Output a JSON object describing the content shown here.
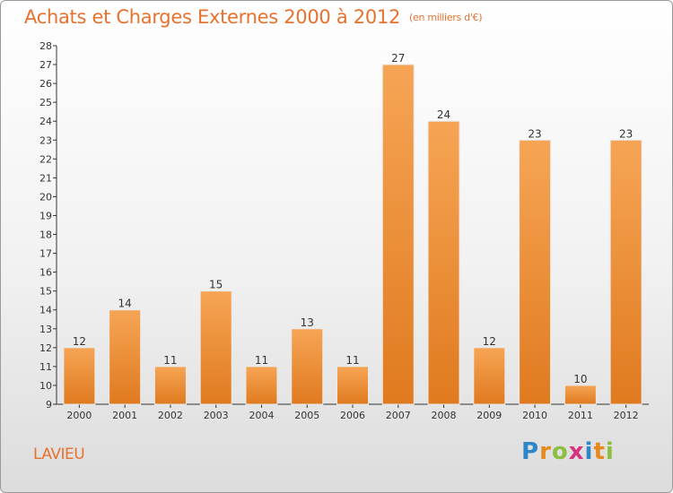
{
  "header": {
    "title": "Achats et Charges Externes 2000 à 2012",
    "subtitle": "(en milliers d'€)"
  },
  "commune": "LAVIEU",
  "logo": {
    "letters": [
      "P",
      "r",
      "o",
      "x",
      "i",
      "t",
      "i"
    ]
  },
  "colors": {
    "bar_top": "#f6a555",
    "bar_bottom": "#e07a1f",
    "text_orange": "#e8712e"
  },
  "chart_data": {
    "type": "bar",
    "title": "Achats et Charges Externes 2000 à 2012",
    "categories": [
      "2000",
      "2001",
      "2002",
      "2003",
      "2004",
      "2005",
      "2006",
      "2007",
      "2008",
      "2009",
      "2010",
      "2011",
      "2012"
    ],
    "values": [
      12,
      14,
      11,
      15,
      11,
      13,
      11,
      27,
      24,
      12,
      23,
      10,
      23
    ],
    "ylim": [
      9,
      28
    ],
    "yticks": [
      9,
      10,
      11,
      12,
      13,
      14,
      15,
      16,
      17,
      18,
      19,
      20,
      21,
      22,
      23,
      24,
      25,
      26,
      27,
      28
    ],
    "grid": false,
    "data_labels": true
  }
}
